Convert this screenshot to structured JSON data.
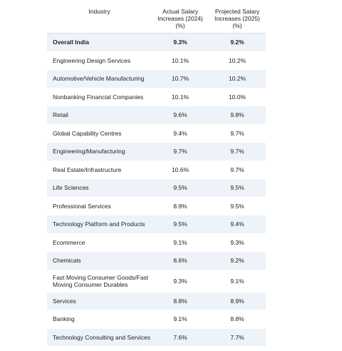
{
  "chart_data": {
    "type": "table",
    "columns": [
      "Industry",
      "Actual Salary Increases (2024) (%)",
      "Projected Salary Increases (2025) (%)"
    ],
    "rows": [
      {
        "industry": "Overall India",
        "actual_2024": "9.3%",
        "projected_2025": "9.2%"
      },
      {
        "industry": "Engineering Design Services",
        "actual_2024": "10.1%",
        "projected_2025": "10.2%"
      },
      {
        "industry": "Automotive/Vehicle Manufacturing",
        "actual_2024": "10.7%",
        "projected_2025": "10.2%"
      },
      {
        "industry": "Nonbanking Financial Companies",
        "actual_2024": "10.1%",
        "projected_2025": "10.0%"
      },
      {
        "industry": "Retail",
        "actual_2024": "9.6%",
        "projected_2025": "9.8%"
      },
      {
        "industry": "Global Capability Centres",
        "actual_2024": "9.4%",
        "projected_2025": "9.7%"
      },
      {
        "industry": "Engineering/Manufacturing",
        "actual_2024": "9.7%",
        "projected_2025": "9.7%"
      },
      {
        "industry": "Real Estate/Infrastructure",
        "actual_2024": "10.6%",
        "projected_2025": "9.7%"
      },
      {
        "industry": "Life Sciences",
        "actual_2024": "9.5%",
        "projected_2025": "9.5%"
      },
      {
        "industry": "Professional Services",
        "actual_2024": "8.9%",
        "projected_2025": "9.5%"
      },
      {
        "industry": "Technology Platform and Products",
        "actual_2024": "9.5%",
        "projected_2025": "9.4%"
      },
      {
        "industry": "Ecommerce",
        "actual_2024": "9.1%",
        "projected_2025": "9.3%"
      },
      {
        "industry": "Chemicals",
        "actual_2024": "8.6%",
        "projected_2025": "9.2%"
      },
      {
        "industry": "Fast Moving Consumer Goods/Fast Moving Consumer Durables",
        "actual_2024": "9.3%",
        "projected_2025": "9.1%"
      },
      {
        "industry": "Services",
        "actual_2024": "8.8%",
        "projected_2025": "8.9%"
      },
      {
        "industry": "Banking",
        "actual_2024": "9.1%",
        "projected_2025": "8.8%"
      },
      {
        "industry": "Technology Consulting and Services",
        "actual_2024": "7.6%",
        "projected_2025": "7.7%"
      }
    ],
    "colors": {
      "stripe": "#edf3f8",
      "background": "#ffffff",
      "text": "#222222"
    }
  }
}
